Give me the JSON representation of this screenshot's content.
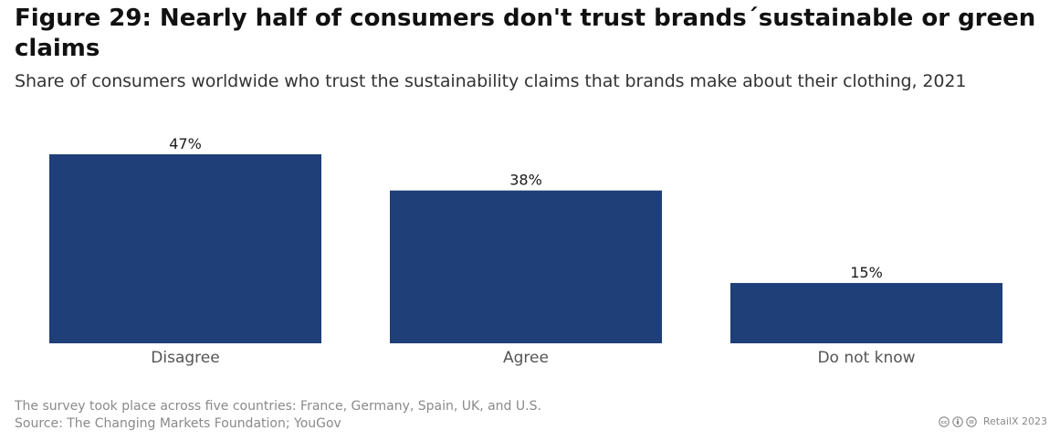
{
  "chart_data": {
    "type": "bar",
    "title": "Figure 29: Nearly half of consumers don't trust brands´sustainable or green claims",
    "subtitle": "Share of consumers worldwide who trust the sustainability claims that brands make about their clothing, 2021",
    "categories": [
      "Disagree",
      "Agree",
      "Do not know"
    ],
    "values": [
      47,
      38,
      15
    ],
    "value_labels": [
      "47%",
      "38%",
      "15%"
    ],
    "unit": "%",
    "xlabel": "",
    "ylabel": "",
    "ylim": [
      0,
      50
    ],
    "grid": false,
    "legend": "none",
    "bar_color": "#1e3f78"
  },
  "footer": {
    "note": "The survey took place across five countries: France, Germany, Spain, UK, and U.S.",
    "source": "Source: The Changing Markets Foundation; YouGov",
    "credit": "RetailX 2023",
    "license_icons": [
      "cc-icon",
      "by-icon",
      "nd-icon"
    ]
  }
}
